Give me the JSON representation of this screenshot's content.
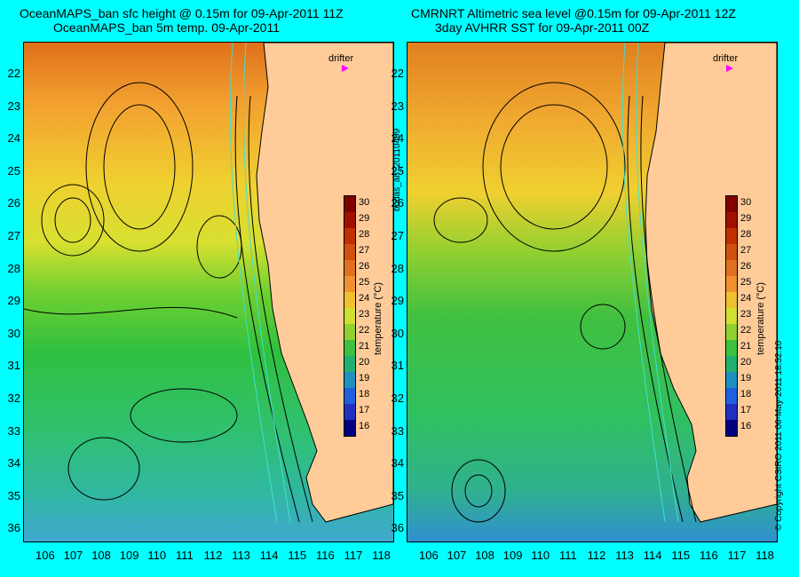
{
  "left_panel": {
    "title_line1": "OceanMAPS_ban sfc height @ 0.15m for 09-Apr-2011 11Z",
    "title_line2": "OceanMAPS_ban 5m temp. 09-Apr-2011"
  },
  "right_panel": {
    "title_line1": "CMRNRT Altimetric sea level  @0.15m  for 09-Apr-2011 12Z",
    "title_line2": "3day AVHRR SST for 09-Apr-2011 00Z"
  },
  "drifter_label": "drifter",
  "colorbar": {
    "label": "temperature (°C)",
    "ticks": [
      "30",
      "29",
      "28",
      "27",
      "26",
      "25",
      "24",
      "23",
      "22",
      "21",
      "20",
      "19",
      "18",
      "17",
      "16"
    ]
  },
  "x_ticks": [
    "106",
    "107",
    "108",
    "109",
    "110",
    "111",
    "112",
    "113",
    "114",
    "115",
    "116",
    "117",
    "118"
  ],
  "y_ticks": [
    "22",
    "23",
    "24",
    "25",
    "26",
    "27",
    "28",
    "29",
    "30",
    "31",
    "32",
    "33",
    "34",
    "35",
    "36"
  ],
  "side_text": {
    "center_vertical": "bodas_an_20110409",
    "right_vertical": "© Copyright CSIRO 2011   06-May-2011 18:52:10"
  },
  "colors": {
    "background": "#00ffff",
    "land": "#ffcc99",
    "drifter": "#ff00ff"
  }
}
